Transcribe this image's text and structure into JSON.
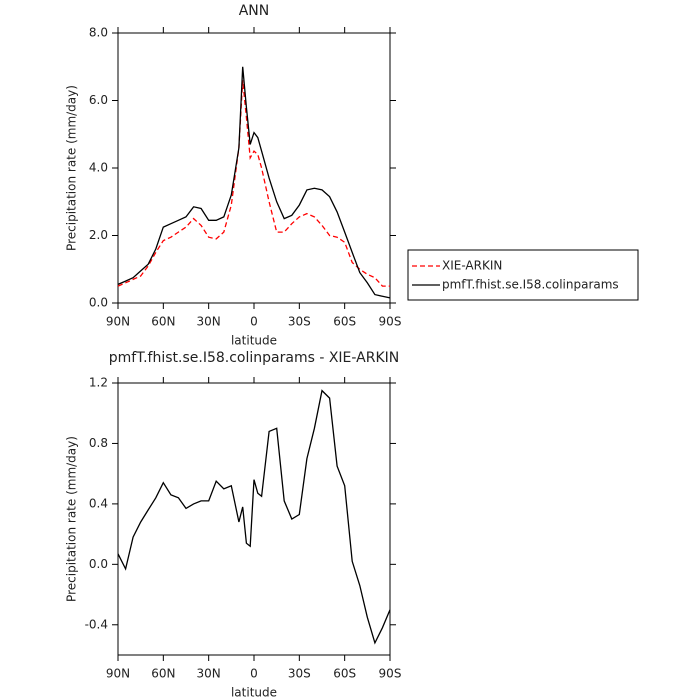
{
  "chart_data": [
    {
      "type": "line",
      "title": "ANN",
      "xlabel": "latitude",
      "ylabel": "Precipitation rate (mm/day)",
      "x": [
        90,
        85,
        80,
        75,
        70,
        65,
        60,
        55,
        50,
        45,
        40,
        35,
        30,
        25,
        20,
        15,
        10,
        7.5,
        5,
        2.5,
        0,
        -2.5,
        -5,
        -10,
        -15,
        -20,
        -25,
        -30,
        -35,
        -40,
        -45,
        -50,
        -55,
        -60,
        -65,
        -70,
        -75,
        -80,
        -85,
        -90
      ],
      "series": [
        {
          "name": "XIE-ARKIN",
          "color": "#ff0000",
          "linestyle": "dashed",
          "values": [
            0.5,
            0.6,
            0.7,
            0.8,
            1.1,
            1.5,
            1.85,
            1.95,
            2.1,
            2.25,
            2.5,
            2.3,
            1.95,
            1.9,
            2.1,
            2.9,
            4.6,
            6.6,
            5.5,
            4.3,
            4.5,
            4.4,
            4.0,
            3.0,
            2.1,
            2.1,
            2.35,
            2.55,
            2.65,
            2.55,
            2.3,
            2.0,
            1.95,
            1.8,
            1.2,
            1.0,
            0.85,
            0.75,
            0.5,
            0.5
          ]
        },
        {
          "name": "pmfT.fhist.se.I58.colinparams",
          "color": "#000000",
          "linestyle": "solid",
          "values": [
            0.55,
            0.65,
            0.75,
            0.95,
            1.15,
            1.6,
            2.25,
            2.35,
            2.45,
            2.55,
            2.85,
            2.8,
            2.45,
            2.45,
            2.55,
            3.2,
            4.6,
            7.0,
            5.8,
            4.7,
            5.05,
            4.9,
            4.5,
            3.7,
            3.0,
            2.5,
            2.6,
            2.9,
            3.35,
            3.4,
            3.35,
            3.15,
            2.7,
            2.1,
            1.5,
            0.9,
            0.6,
            0.25,
            0.2,
            0.15
          ]
        }
      ],
      "xlim": [
        90,
        -90
      ],
      "xticks": [
        {
          "value": 90,
          "label": "90N"
        },
        {
          "value": 60,
          "label": "60N"
        },
        {
          "value": 30,
          "label": "30N"
        },
        0,
        {
          "value": -30,
          "label": "30S"
        },
        {
          "value": -60,
          "label": "60S"
        },
        {
          "value": -90,
          "label": "90S"
        }
      ],
      "ylim": [
        0,
        8
      ],
      "yticks": [
        {
          "value": 0,
          "label": "0.0"
        },
        {
          "value": 2,
          "label": "2.0"
        },
        {
          "value": 4,
          "label": "4.0"
        },
        {
          "value": 6,
          "label": "6.0"
        },
        {
          "value": 8,
          "label": "8.0"
        }
      ],
      "legend": "outside right"
    },
    {
      "type": "line",
      "title": "pmfT.fhist.se.I58.colinparams - XIE-ARKIN",
      "xlabel": "latitude",
      "ylabel": "Precipitation rate (mm/day)",
      "x": [
        90,
        85,
        80,
        75,
        70,
        65,
        60,
        55,
        50,
        45,
        40,
        35,
        30,
        25,
        20,
        15,
        10,
        7.5,
        5,
        2.5,
        0,
        -2.5,
        -5,
        -10,
        -15,
        -20,
        -25,
        -30,
        -35,
        -40,
        -45,
        -50,
        -55,
        -60,
        -65,
        -70,
        -75,
        -80,
        -85,
        -90
      ],
      "series": [
        {
          "color": "#000000",
          "linestyle": "solid",
          "values": [
            0.07,
            -0.03,
            0.18,
            0.28,
            0.36,
            0.44,
            0.54,
            0.46,
            0.44,
            0.37,
            0.4,
            0.42,
            0.42,
            0.55,
            0.5,
            0.52,
            0.28,
            0.38,
            0.14,
            0.12,
            0.56,
            0.47,
            0.45,
            0.88,
            0.9,
            0.42,
            0.3,
            0.33,
            0.7,
            0.9,
            1.15,
            1.1,
            0.65,
            0.52,
            0.02,
            -0.14,
            -0.35,
            -0.52,
            -0.42,
            -0.3
          ]
        }
      ],
      "xlim": [
        90,
        -90
      ],
      "xticks": [
        {
          "value": 90,
          "label": "90N"
        },
        {
          "value": 60,
          "label": "60N"
        },
        {
          "value": 30,
          "label": "30N"
        },
        0,
        {
          "value": -30,
          "label": "30S"
        },
        {
          "value": -60,
          "label": "60S"
        },
        {
          "value": -90,
          "label": "90S"
        }
      ],
      "ylim": [
        -0.6,
        1.2
      ],
      "yticks": [
        -0.4,
        {
          "value": 0,
          "label": "0.0"
        },
        0.4,
        0.8,
        1.2
      ]
    }
  ]
}
